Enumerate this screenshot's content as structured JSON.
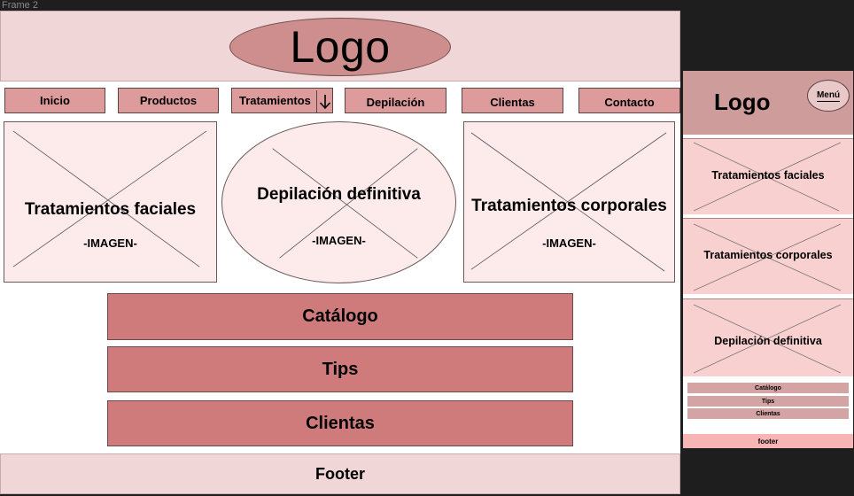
{
  "canvas": {
    "frame_label": "Frame 2"
  },
  "desktop": {
    "logo": "Logo",
    "nav": [
      "Inicio",
      "Productos",
      "Tratamientos",
      "Depilación",
      "Clientas",
      "Contacto"
    ],
    "cards": [
      {
        "title": "Tratamientos faciales",
        "sub": "-IMAGEN-"
      },
      {
        "title": "Depilación definitiva",
        "sub": "-IMAGEN-"
      },
      {
        "title": "Tratamientos corporales",
        "sub": "-IMAGEN-"
      }
    ],
    "sections": [
      "Catálogo",
      "Tips",
      "Clientas"
    ],
    "footer": "Footer"
  },
  "mobile": {
    "logo": "Logo",
    "menu": "Menú",
    "cards": [
      "Tratamientos faciales",
      "Tratamientos corporales",
      "Depilación definitiva"
    ],
    "sections": [
      "Catálogo",
      "Tips",
      "Clientas"
    ],
    "footer": "footer"
  },
  "colors": {
    "header_bg": "#f0d6d6",
    "logo_oval": "#cf8e8e",
    "nav_btn": "#dd9b9b",
    "card_bg": "#fdeaea",
    "section_btn": "#d07b7b",
    "canvas_bg": "#1e1e1e"
  },
  "icons": {
    "dropdown": "arrow-down-icon",
    "placeholder": "image-placeholder-cross-icon"
  }
}
